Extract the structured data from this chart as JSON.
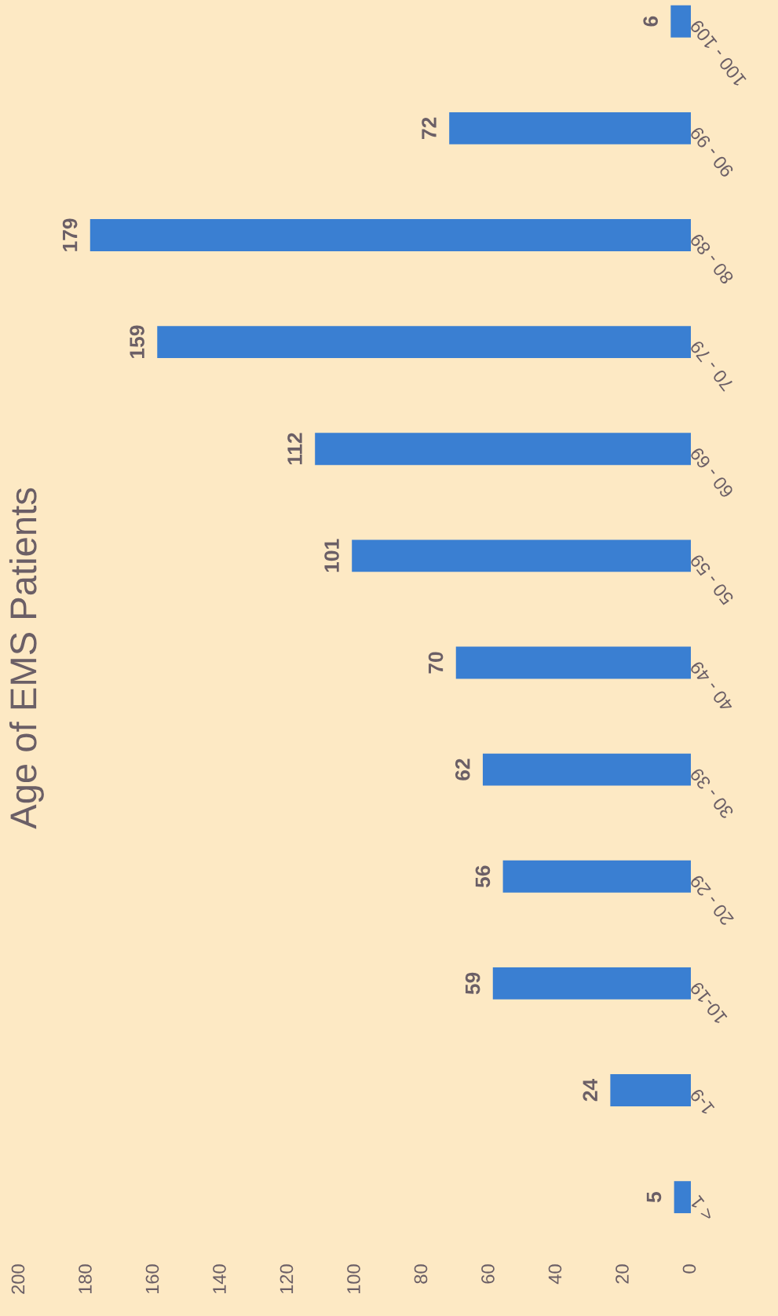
{
  "chart_data": {
    "type": "bar",
    "orientation": "horizontal",
    "title": "Age of EMS Patients",
    "categories": [
      "100 - 109",
      "90 - 99",
      "80 - 89",
      "70 - 79",
      "60 - 69",
      "50 - 59",
      "40 - 49",
      "30 - 39",
      "20 - 29",
      "10-19",
      "1-9",
      "< 1"
    ],
    "values": [
      6,
      72,
      179,
      159,
      112,
      101,
      70,
      62,
      56,
      59,
      24,
      5
    ],
    "color": "#3a7fd2",
    "xlim": [
      200,
      0
    ],
    "xticks": [
      200,
      180,
      160,
      140,
      120,
      100,
      80,
      60,
      40,
      20,
      0
    ],
    "data_labels": true,
    "grid": false,
    "legend": false
  }
}
